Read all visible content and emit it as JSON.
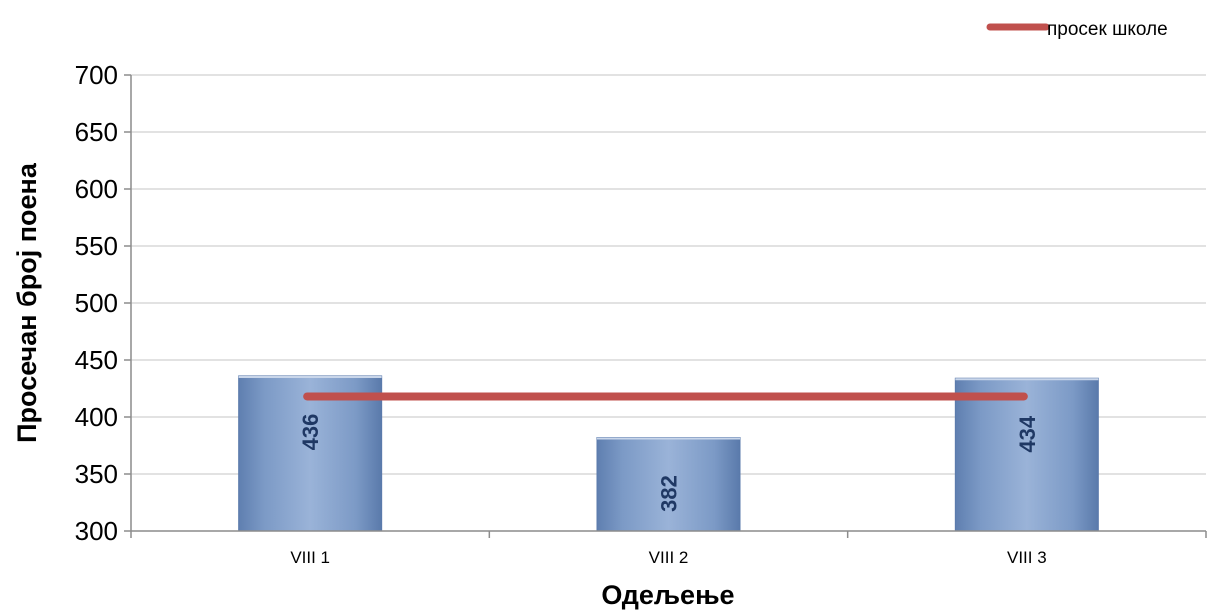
{
  "chart_data": {
    "type": "bar",
    "title": "",
    "xlabel": "Одељење",
    "ylabel": "Просечан број поена",
    "categories": [
      "VIII 1",
      "VIII 2",
      "VIII 3"
    ],
    "values": [
      436,
      382,
      434
    ],
    "value_labels": [
      "436",
      "382",
      "434"
    ],
    "ylim": [
      300,
      700
    ],
    "yticks": [
      300,
      350,
      400,
      450,
      500,
      550,
      600,
      650,
      700
    ],
    "ytick_labels": [
      "300",
      "350",
      "400",
      "450",
      "500",
      "550",
      "600",
      "650",
      "700"
    ],
    "grid": true,
    "legend": {
      "placement": "top-right",
      "entries": [
        {
          "label": "просек школе",
          "color": "#c0504d"
        }
      ]
    },
    "reference_line": {
      "name": "просек школе",
      "value": 418,
      "color": "#c0504d"
    },
    "colors": {
      "bar": "#7f9cc7",
      "bar_label": "#1f3864",
      "grid": "#d9d9d9"
    }
  }
}
